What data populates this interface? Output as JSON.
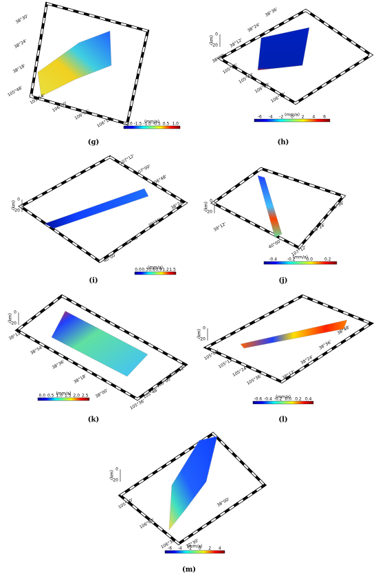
{
  "panels": [
    {
      "label": "(g)",
      "unit": "(mm/a)",
      "colorbar_ticks": [
        "-2.0",
        "-1.5",
        "-1.0",
        "-0.5",
        "0.5",
        "1.0"
      ],
      "tick_labels": [
        "38°30'",
        "38°24'",
        "38°18'",
        "105°48'",
        "105°54'",
        "106°00'",
        "106°06'",
        "106°12'"
      ]
    },
    {
      "label": "(h)",
      "unit": "(mm/a)",
      "colorbar_ticks": [
        "-6",
        "-4",
        "-2",
        "0",
        "2",
        "4",
        "6"
      ],
      "depth_axis": [
        "(km)",
        "0",
        "-20"
      ],
      "tick_labels": [
        "38°36'",
        "38°24'",
        "38°12'",
        "38°00'",
        "105°36'",
        "105°48'",
        "106°00'",
        "106°12'"
      ]
    },
    {
      "label": "(i)",
      "unit": "(mm/a)",
      "colorbar_ticks": [
        "0.0",
        "0.3",
        "0.6",
        "0.9",
        "1.2",
        "1.5"
      ],
      "depth_axis": [
        "(km)",
        "0",
        "-20"
      ],
      "tick_labels": [
        "107°12'",
        "107°00'",
        "106°48'",
        "38°24'",
        "39°36'",
        "39°48'",
        "40°00'"
      ]
    },
    {
      "label": "(j)",
      "unit": "(mm/a)",
      "colorbar_ticks": [
        "-0.4",
        "-0.2",
        "0.0",
        "0.2"
      ],
      "depth_axis": [
        "(km)",
        "0",
        "-20"
      ],
      "tick_labels": [
        "39°12'",
        "40°00'",
        "107°12'",
        "106°24'",
        "105°36'"
      ]
    },
    {
      "label": "(k)",
      "unit": "(mm/a)",
      "colorbar_ticks": [
        "0.0",
        "0.5",
        "1.0",
        "1.5",
        "2.0",
        "2.5"
      ],
      "depth_axis": [
        "(km)",
        "0",
        "-20"
      ],
      "tick_labels": [
        "39°12'",
        "38°54'",
        "38°36'",
        "38°18'",
        "38°00'",
        "105°36'",
        "105°48'",
        "106°00'",
        "106°12'"
      ]
    },
    {
      "label": "(l)",
      "unit": "(mm/a)",
      "colorbar_ticks": [
        "-0.6",
        "-0.4",
        "-0.2",
        "0.0",
        "0.2",
        "0.4"
      ],
      "depth_axis": [
        "(km)",
        "0",
        "-20"
      ],
      "tick_labels": [
        "105°00'",
        "105°12'",
        "105°24'",
        "105°36'",
        "38°12'",
        "38°24'",
        "38°36'",
        "38°48'"
      ]
    },
    {
      "label": "(m)",
      "unit": "(mm/a)",
      "colorbar_ticks": [
        "-6",
        "-4",
        "-2",
        "0",
        "2",
        "4"
      ],
      "depth_axis": [
        "(km)",
        "0",
        "-20"
      ],
      "tick_labels": [
        "105°30'",
        "106°00'",
        "106°30'",
        "37°30'",
        "38°00'"
      ]
    }
  ]
}
